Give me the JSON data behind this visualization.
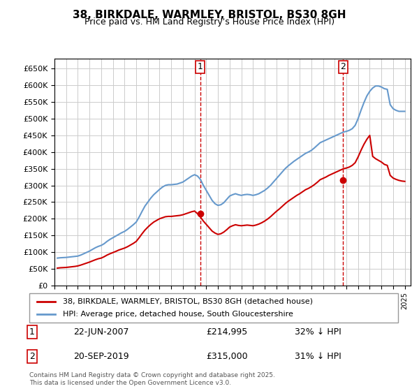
{
  "title": "38, BIRKDALE, WARMLEY, BRISTOL, BS30 8GH",
  "subtitle": "Price paid vs. HM Land Registry's House Price Index (HPI)",
  "ylabel": "",
  "ylim": [
    0,
    680000
  ],
  "yticks": [
    0,
    50000,
    100000,
    150000,
    200000,
    250000,
    300000,
    350000,
    400000,
    450000,
    500000,
    550000,
    600000,
    650000
  ],
  "xlim_start": 1995.0,
  "xlim_end": 2025.5,
  "xtick_years": [
    1995,
    1996,
    1997,
    1998,
    1999,
    2000,
    2001,
    2002,
    2003,
    2004,
    2005,
    2006,
    2007,
    2008,
    2009,
    2010,
    2011,
    2012,
    2013,
    2014,
    2015,
    2016,
    2017,
    2018,
    2019,
    2020,
    2021,
    2022,
    2023,
    2024,
    2025
  ],
  "sale1_x": 2007.47,
  "sale1_y": 214995,
  "sale2_x": 2019.72,
  "sale2_y": 315000,
  "sale1_label": "22-JUN-2007",
  "sale1_price": "£214,995",
  "sale1_hpi": "32% ↓ HPI",
  "sale2_label": "20-SEP-2019",
  "sale2_price": "£315,000",
  "sale2_hpi": "31% ↓ HPI",
  "line1_color": "#cc0000",
  "line2_color": "#6699cc",
  "vline_color": "#cc0000",
  "grid_color": "#cccccc",
  "background_color": "#ffffff",
  "legend1_label": "38, BIRKDALE, WARMLEY, BRISTOL, BS30 8GH (detached house)",
  "legend2_label": "HPI: Average price, detached house, South Gloucestershire",
  "footer": "Contains HM Land Registry data © Crown copyright and database right 2025.\nThis data is licensed under the Open Government Licence v3.0.",
  "hpi_data": {
    "years": [
      1995.25,
      1995.5,
      1995.75,
      1996.0,
      1996.25,
      1996.5,
      1996.75,
      1997.0,
      1997.25,
      1997.5,
      1997.75,
      1998.0,
      1998.25,
      1998.5,
      1998.75,
      1999.0,
      1999.25,
      1999.5,
      1999.75,
      2000.0,
      2000.25,
      2000.5,
      2000.75,
      2001.0,
      2001.25,
      2001.5,
      2001.75,
      2002.0,
      2002.25,
      2002.5,
      2002.75,
      2003.0,
      2003.25,
      2003.5,
      2003.75,
      2004.0,
      2004.25,
      2004.5,
      2004.75,
      2005.0,
      2005.25,
      2005.5,
      2005.75,
      2006.0,
      2006.25,
      2006.5,
      2006.75,
      2007.0,
      2007.25,
      2007.5,
      2007.75,
      2008.0,
      2008.25,
      2008.5,
      2008.75,
      2009.0,
      2009.25,
      2009.5,
      2009.75,
      2010.0,
      2010.25,
      2010.5,
      2010.75,
      2011.0,
      2011.25,
      2011.5,
      2011.75,
      2012.0,
      2012.25,
      2012.5,
      2012.75,
      2013.0,
      2013.25,
      2013.5,
      2013.75,
      2014.0,
      2014.25,
      2014.5,
      2014.75,
      2015.0,
      2015.25,
      2015.5,
      2015.75,
      2016.0,
      2016.25,
      2016.5,
      2016.75,
      2017.0,
      2017.25,
      2017.5,
      2017.75,
      2018.0,
      2018.25,
      2018.5,
      2018.75,
      2019.0,
      2019.25,
      2019.5,
      2019.75,
      2020.0,
      2020.25,
      2020.5,
      2020.75,
      2021.0,
      2021.25,
      2021.5,
      2021.75,
      2022.0,
      2022.25,
      2022.5,
      2022.75,
      2023.0,
      2023.25,
      2023.5,
      2023.75,
      2024.0,
      2024.25,
      2024.5,
      2024.75,
      2025.0
    ],
    "values": [
      82000,
      83000,
      83500,
      84000,
      85000,
      86000,
      87000,
      88000,
      91000,
      95000,
      99000,
      103000,
      108000,
      113000,
      117000,
      120000,
      125000,
      132000,
      138000,
      143000,
      148000,
      153000,
      158000,
      162000,
      168000,
      175000,
      182000,
      190000,
      205000,
      222000,
      238000,
      250000,
      262000,
      272000,
      280000,
      288000,
      295000,
      300000,
      302000,
      302000,
      303000,
      304000,
      307000,
      310000,
      316000,
      322000,
      328000,
      332000,
      328000,
      318000,
      300000,
      285000,
      270000,
      255000,
      245000,
      240000,
      242000,
      248000,
      258000,
      268000,
      272000,
      275000,
      272000,
      270000,
      272000,
      273000,
      272000,
      270000,
      272000,
      275000,
      280000,
      285000,
      292000,
      300000,
      310000,
      320000,
      330000,
      340000,
      350000,
      358000,
      365000,
      372000,
      378000,
      384000,
      390000,
      396000,
      400000,
      405000,
      412000,
      420000,
      428000,
      432000,
      436000,
      440000,
      444000,
      448000,
      452000,
      456000,
      460000,
      462000,
      465000,
      470000,
      480000,
      500000,
      525000,
      548000,
      568000,
      582000,
      592000,
      598000,
      598000,
      595000,
      590000,
      588000,
      542000,
      530000,
      525000,
      522000,
      522000,
      522000
    ]
  },
  "price_data": {
    "years": [
      1995.25,
      1995.5,
      1995.75,
      1996.0,
      1996.25,
      1996.5,
      1996.75,
      1997.0,
      1997.25,
      1997.5,
      1997.75,
      1998.0,
      1998.25,
      1998.5,
      1998.75,
      1999.0,
      1999.25,
      1999.5,
      1999.75,
      2000.0,
      2000.25,
      2000.5,
      2000.75,
      2001.0,
      2001.25,
      2001.5,
      2001.75,
      2002.0,
      2002.25,
      2002.5,
      2002.75,
      2003.0,
      2003.25,
      2003.5,
      2003.75,
      2004.0,
      2004.25,
      2004.5,
      2004.75,
      2005.0,
      2005.25,
      2005.5,
      2005.75,
      2006.0,
      2006.25,
      2006.5,
      2006.75,
      2007.0,
      2007.25,
      2007.5,
      2007.75,
      2008.0,
      2008.25,
      2008.5,
      2008.75,
      2009.0,
      2009.25,
      2009.5,
      2009.75,
      2010.0,
      2010.25,
      2010.5,
      2010.75,
      2011.0,
      2011.25,
      2011.5,
      2011.75,
      2012.0,
      2012.25,
      2012.5,
      2012.75,
      2013.0,
      2013.25,
      2013.5,
      2013.75,
      2014.0,
      2014.25,
      2014.5,
      2014.75,
      2015.0,
      2015.25,
      2015.5,
      2015.75,
      2016.0,
      2016.25,
      2016.5,
      2016.75,
      2017.0,
      2017.25,
      2017.5,
      2017.75,
      2018.0,
      2018.25,
      2018.5,
      2018.75,
      2019.0,
      2019.25,
      2019.5,
      2019.75,
      2020.0,
      2020.25,
      2020.5,
      2020.75,
      2021.0,
      2021.25,
      2021.5,
      2021.75,
      2022.0,
      2022.25,
      2022.5,
      2022.75,
      2023.0,
      2023.25,
      2023.5,
      2023.75,
      2024.0,
      2024.25,
      2024.5,
      2024.75,
      2025.0
    ],
    "values": [
      52000,
      53000,
      53500,
      54000,
      55000,
      56000,
      57000,
      58500,
      61000,
      64000,
      67000,
      70000,
      73500,
      77000,
      80000,
      82000,
      86000,
      91000,
      95000,
      98500,
      102000,
      106000,
      109000,
      112000,
      116000,
      121000,
      126000,
      132000,
      143000,
      155000,
      166000,
      175000,
      183000,
      190000,
      195000,
      200000,
      203000,
      206000,
      207000,
      207000,
      208000,
      209000,
      210000,
      212000,
      215000,
      218000,
      221000,
      223000,
      215000,
      205000,
      193000,
      183000,
      173000,
      163000,
      157000,
      153000,
      155000,
      160000,
      167000,
      175000,
      179000,
      182000,
      180000,
      179000,
      180000,
      181000,
      180000,
      179000,
      181000,
      184000,
      188000,
      193000,
      199000,
      206000,
      214000,
      222000,
      229000,
      237000,
      245000,
      252000,
      258000,
      264000,
      270000,
      275000,
      281000,
      287000,
      291000,
      296000,
      302000,
      309000,
      317000,
      321000,
      325000,
      330000,
      334000,
      338000,
      342000,
      346000,
      350000,
      352000,
      355000,
      360000,
      368000,
      385000,
      405000,
      423000,
      438000,
      450000,
      387000,
      380000,
      375000,
      370000,
      363000,
      360000,
      330000,
      322000,
      318000,
      315000,
      313000,
      312000
    ]
  }
}
